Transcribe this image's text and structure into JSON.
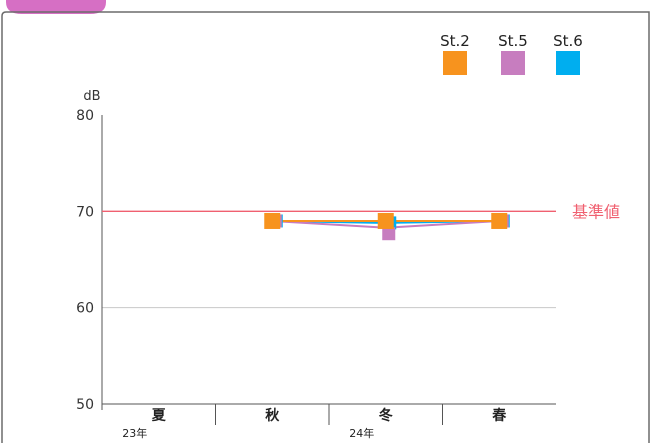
{
  "chart_data": {
    "type": "line",
    "ylabel": "dB",
    "ylim": [
      50,
      80
    ],
    "yticks": [
      50,
      60,
      70,
      80
    ],
    "categories": [
      "夏",
      "秋",
      "冬",
      "春"
    ],
    "year_labels": [
      "23年",
      "24年"
    ],
    "reference_line": {
      "label": "基準値",
      "value": 70,
      "color": "#f06070"
    },
    "series": [
      {
        "name": "St.2",
        "color": "#f7931e",
        "values": [
          null,
          69.0,
          69.0,
          69.0
        ]
      },
      {
        "name": "St.5",
        "color": "#c77dbf",
        "values": [
          null,
          69.0,
          68.3,
          69.0
        ]
      },
      {
        "name": "St.6",
        "color": "#00aeef",
        "values": [
          null,
          69.0,
          68.8,
          69.0
        ]
      }
    ],
    "legend_position": "top-right",
    "grid": "horizontal"
  }
}
